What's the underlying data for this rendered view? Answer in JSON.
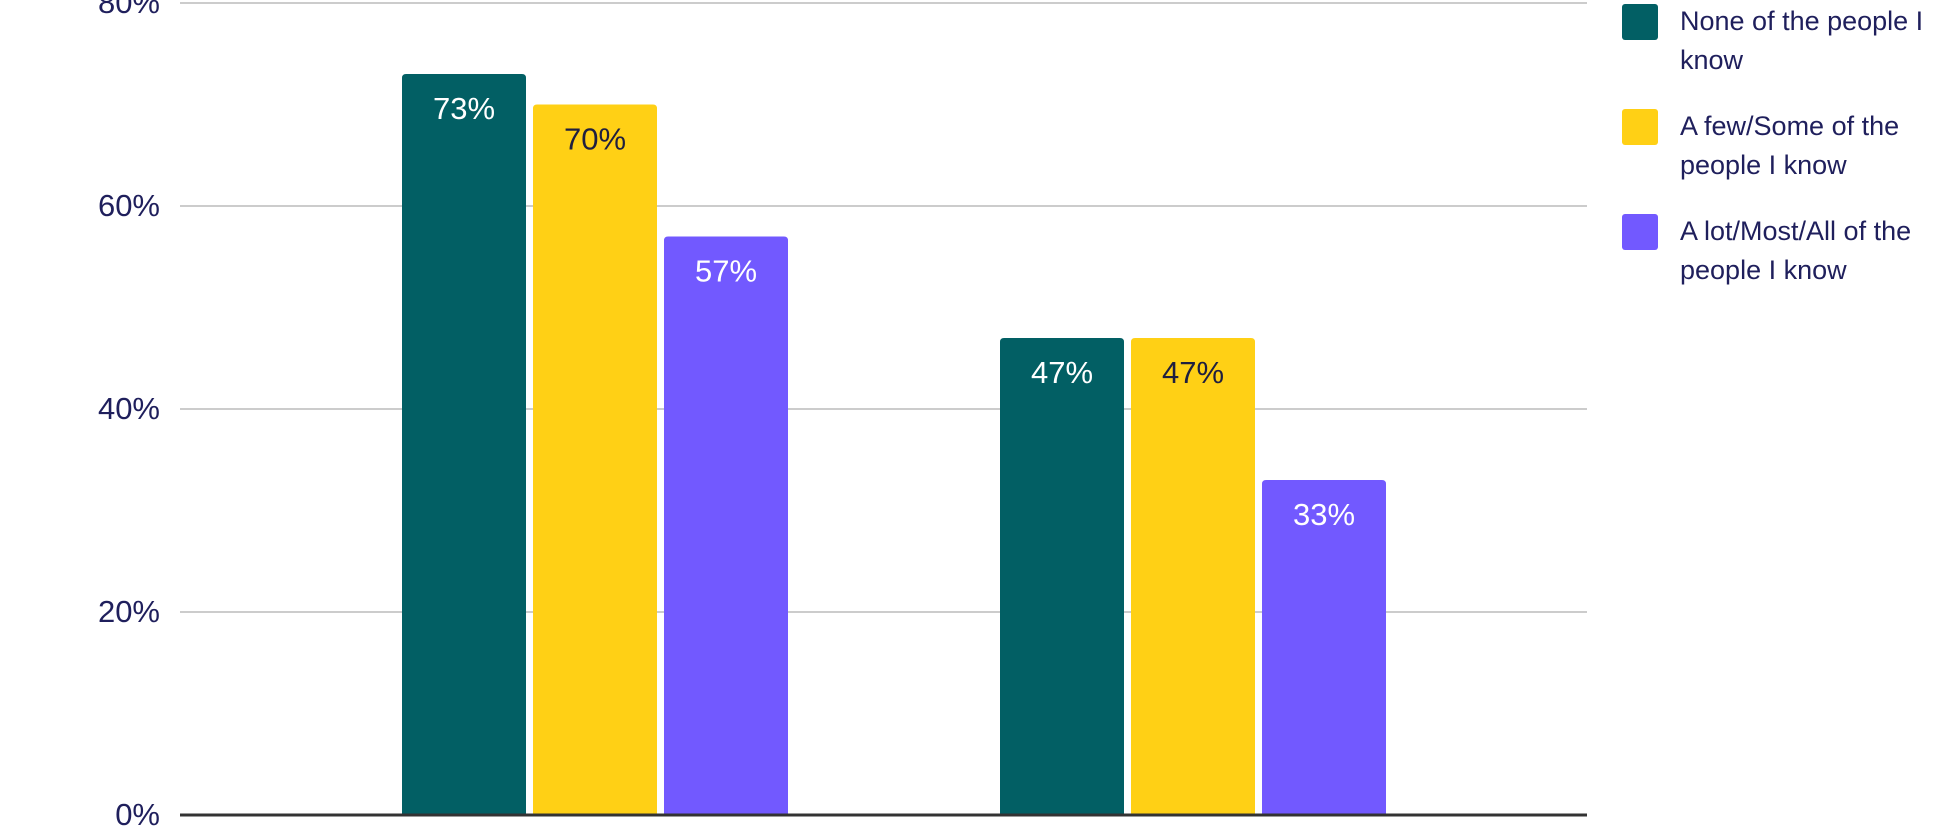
{
  "chart_data": {
    "type": "bar",
    "title": "",
    "xlabel": "",
    "ylabel": "",
    "categories": [
      "",
      ""
    ],
    "ylim": [
      0,
      80
    ],
    "yticks": [
      "0%",
      "20%",
      "40%",
      "60%",
      "80%"
    ],
    "ytick_values": [
      0,
      20,
      40,
      60,
      80
    ],
    "grid": true,
    "legend_position": "top-right",
    "series": [
      {
        "name": "None of the people I know",
        "color": "#025F64",
        "values": [
          73,
          47
        ],
        "labels": [
          "73%",
          "47%"
        ],
        "label_color": "#ffffff"
      },
      {
        "name": "A few/Some of the people I know",
        "color": "#FFD015",
        "values": [
          70,
          47
        ],
        "labels": [
          "70%",
          "47%"
        ],
        "label_color": "#1f1f3f"
      },
      {
        "name": "A lot/Most/All of the people I know",
        "color": "#7259FF",
        "values": [
          57,
          33
        ],
        "labels": [
          "57%",
          "33%"
        ],
        "label_color": "#ffffff"
      }
    ],
    "text_color": "#1f1f5c",
    "gridline_color": "#cccccc",
    "baseline_color": "#333333"
  }
}
